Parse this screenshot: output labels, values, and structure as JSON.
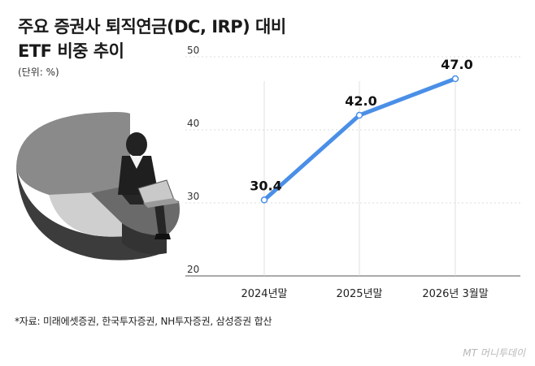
{
  "header": {
    "title_line1": "주요 증권사 퇴직연금(DC, IRP) 대비",
    "title_line2": "ETF 비중 추이",
    "unit": "(단위: %)"
  },
  "footer": {
    "source": "*자료: 미래에셋증권, 한국투자증권, NH투자증권, 삼성증권 합산",
    "watermark": "MT 머니투데이"
  },
  "chart_data": {
    "type": "line",
    "title": "주요 증권사 퇴직연금(DC, IRP) 대비 ETF 비중 추이",
    "ylabel": "(단위: %)",
    "categories": [
      "2024년말",
      "2025년말",
      "2026년 3월말"
    ],
    "series": [
      {
        "values": [
          30.4,
          42.0,
          47.0
        ],
        "labels": [
          "30.4",
          "42.0",
          "47.0"
        ]
      }
    ],
    "ylim": [
      20,
      50
    ],
    "yticks": [
      20,
      30,
      40,
      50
    ],
    "grid": true,
    "line_color": "#4a8fe7"
  }
}
